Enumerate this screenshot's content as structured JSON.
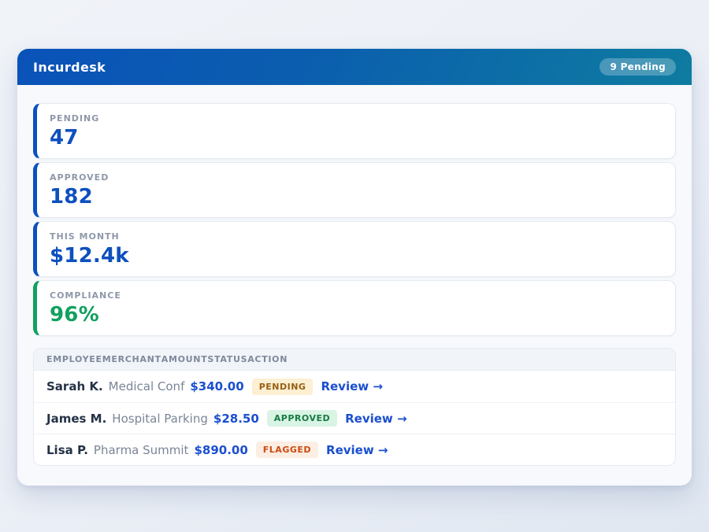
{
  "header": {
    "title": "Incurdesk",
    "badge": "9 Pending"
  },
  "colors": {
    "header_gradient_start": "#0a52b9",
    "header_gradient_end": "#0e7ca0",
    "accent_blue": "#0d50bf",
    "accent_green": "#12a05f",
    "amount_blue": "#1a4fd0",
    "badge_pending_bg": "#fcefd2",
    "badge_pending_text": "#975f12",
    "badge_approved_bg": "#d9f4e4",
    "badge_approved_text": "#177a43",
    "badge_flagged_bg": "#fdeee3",
    "badge_flagged_text": "#ca4a10"
  },
  "stats": [
    {
      "label": "PENDING",
      "value": "47",
      "accent": "#0d50bf"
    },
    {
      "label": "APPROVED",
      "value": "182",
      "accent": "#0d50bf"
    },
    {
      "label": "THIS MONTH",
      "value": "$12.4k",
      "accent": "#0d50bf"
    },
    {
      "label": "COMPLIANCE",
      "value": "96%",
      "accent": "#12a05f"
    }
  ],
  "table": {
    "columns": [
      "EMPLOYEE",
      "MERCHANT",
      "AMOUNT",
      "STATUS",
      "ACTION"
    ],
    "rows": [
      {
        "employee": "Sarah K.",
        "merchant": "Medical Conf",
        "amount": "$340.00",
        "status": "PENDING",
        "action": "Review →"
      },
      {
        "employee": "James M.",
        "merchant": "Hospital Parking",
        "amount": "$28.50",
        "status": "APPROVED",
        "action": "Review →"
      },
      {
        "employee": "Lisa P.",
        "merchant": "Pharma Summit",
        "amount": "$890.00",
        "status": "FLAGGED",
        "action": "Review →"
      }
    ]
  }
}
